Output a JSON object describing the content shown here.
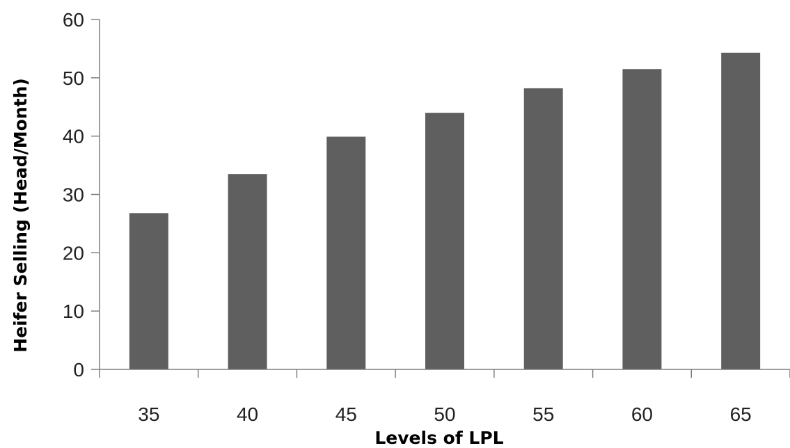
{
  "chart_data": {
    "type": "bar",
    "title": "",
    "xlabel": "Levels of LPL",
    "ylabel": "Heifer Selling (Head/Month)",
    "categories": [
      "35",
      "40",
      "45",
      "50",
      "55",
      "60",
      "65"
    ],
    "values": [
      26.8,
      33.5,
      39.9,
      44.0,
      48.2,
      51.5,
      54.3
    ],
    "ylim": [
      0,
      60
    ],
    "yticks": [
      "0",
      "10",
      "20",
      "30",
      "40",
      "50",
      "60"
    ],
    "grid": false,
    "legend": "none",
    "bar_color": "#5f5f5f",
    "axis_color": "#7f7f7f"
  }
}
